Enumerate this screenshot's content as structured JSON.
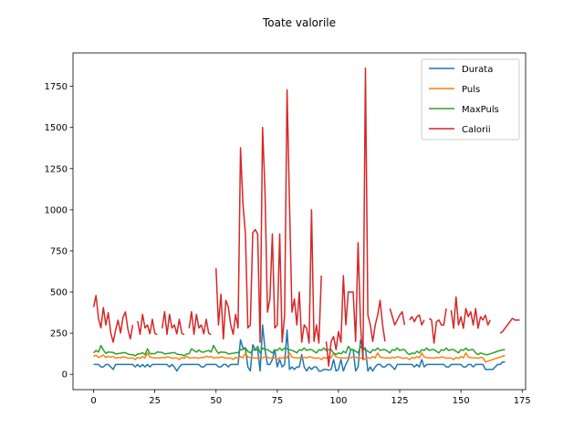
{
  "chart_data": {
    "type": "line",
    "title": "Toate valorile",
    "xlabel": "",
    "ylabel": "",
    "xlim": [
      -8.4,
      176.4
    ],
    "ylim": [
      -93,
      1953
    ],
    "xticks": [
      0,
      25,
      50,
      75,
      100,
      125,
      150,
      175
    ],
    "yticks": [
      0,
      250,
      500,
      750,
      1000,
      1250,
      1500,
      1750
    ],
    "grid": false,
    "legend": "top-right",
    "series": [
      {
        "name": "Durata",
        "color": "#1f77b4",
        "values": [
          60,
          60,
          60,
          45,
          45,
          60,
          60,
          45,
          30,
          60,
          60,
          60,
          60,
          60,
          60,
          60,
          60,
          45,
          60,
          45,
          60,
          45,
          60,
          45,
          60,
          60,
          60,
          60,
          60,
          60,
          60,
          45,
          60,
          45,
          20,
          45,
          60,
          60,
          60,
          60,
          60,
          60,
          60,
          60,
          45,
          45,
          60,
          60,
          60,
          60,
          60,
          45,
          45,
          60,
          60,
          45,
          60,
          60,
          60,
          60,
          210,
          160,
          160,
          45,
          20,
          180,
          150,
          150,
          20,
          300,
          150,
          60,
          60,
          90,
          150,
          45,
          90,
          45,
          60,
          270,
          30,
          45,
          30,
          45,
          45,
          120,
          45,
          20,
          45,
          30,
          45,
          45,
          20,
          20,
          30,
          30,
          25,
          30,
          90,
          20,
          30,
          90,
          20,
          60,
          90,
          150,
          150,
          20,
          45,
          210,
          160,
          160,
          20,
          45,
          20,
          45,
          60,
          60,
          45,
          45,
          60,
          60,
          45,
          30,
          60,
          60,
          60,
          60,
          60,
          60,
          60,
          45,
          60,
          45,
          90,
          45,
          60,
          60,
          60,
          60,
          60,
          60,
          60,
          60,
          45,
          45,
          60,
          60,
          60,
          60,
          60,
          45,
          45,
          60,
          60,
          45,
          60,
          60,
          60,
          60,
          30,
          30,
          30,
          30,
          45,
          60,
          60,
          75,
          75
        ]
      },
      {
        "name": "Puls",
        "color": "#ff7f0e",
        "values": [
          110,
          117,
          103,
          109,
          117,
          102,
          110,
          104,
          109,
          98,
          103,
          100,
          106,
          104,
          98,
          98,
          100,
          90,
          103,
          97,
          108,
          100,
          130,
          105,
          102,
          100,
          100,
          98,
          103,
          100,
          106,
          104,
          98,
          98,
          100,
          90,
          103,
          97,
          108,
          100,
          100,
          102,
          100,
          98,
          103,
          102,
          110,
          104,
          109,
          98,
          103,
          100,
          106,
          104,
          98,
          98,
          100,
          90,
          103,
          97,
          108,
          100,
          130,
          105,
          102,
          100,
          100,
          98,
          103,
          100,
          106,
          104,
          98,
          98,
          100,
          90,
          103,
          97,
          108,
          100,
          130,
          105,
          102,
          100,
          100,
          98,
          103,
          100,
          106,
          104,
          98,
          98,
          100,
          90,
          103,
          97,
          108,
          100,
          130,
          105,
          102,
          100,
          100,
          98,
          103,
          100,
          106,
          104,
          98,
          98,
          100,
          90,
          103,
          97,
          108,
          100,
          130,
          105,
          102,
          100,
          100,
          98,
          103,
          100,
          106,
          104,
          98,
          98,
          100,
          90,
          103,
          97,
          108,
          100,
          130,
          105,
          102,
          100,
          100,
          98,
          103,
          100,
          106,
          104,
          98,
          98,
          100,
          90,
          103,
          97,
          108,
          100,
          130,
          105,
          102,
          100,
          100,
          98,
          103,
          100,
          75,
          80,
          85,
          90,
          95,
          100,
          105,
          110,
          115
        ]
      },
      {
        "name": "MaxPuls",
        "color": "#2ca02c",
        "values": [
          130,
          145,
          135,
          175,
          148,
          127,
          136,
          134,
          133,
          124,
          126,
          128,
          131,
          132,
          123,
          120,
          120,
          112,
          123,
          125,
          131,
          119,
          155,
          125,
          126,
          125,
          136,
          134,
          133,
          124,
          126,
          128,
          131,
          132,
          123,
          120,
          120,
          112,
          123,
          125,
          155,
          145,
          135,
          148,
          136,
          135,
          141,
          145,
          135,
          175,
          148,
          127,
          136,
          134,
          133,
          124,
          126,
          128,
          131,
          132,
          150,
          150,
          160,
          140,
          130,
          150,
          145,
          170,
          130,
          160,
          150,
          150,
          140,
          130,
          150,
          145,
          160,
          145,
          160,
          155,
          150,
          145,
          140,
          130,
          150,
          145,
          160,
          145,
          150,
          150,
          140,
          130,
          150,
          145,
          160,
          145,
          150,
          150,
          130,
          120,
          130,
          125,
          140,
          130,
          170,
          150,
          150,
          140,
          130,
          170,
          150,
          150,
          140,
          130,
          150,
          145,
          160,
          145,
          150,
          150,
          140,
          130,
          150,
          145,
          160,
          145,
          150,
          150,
          130,
          120,
          130,
          125,
          140,
          130,
          150,
          145,
          160,
          145,
          150,
          150,
          140,
          130,
          150,
          145,
          160,
          145,
          150,
          150,
          140,
          130,
          150,
          145,
          160,
          145,
          150,
          150,
          130,
          120,
          130,
          125,
          120,
          120,
          125,
          130,
          135,
          140,
          145,
          148,
          150
        ]
      },
      {
        "name": "Calorii",
        "color": "#d62728",
        "values": [
          409.1,
          479,
          340,
          282.4,
          406,
          300,
          374,
          253.3,
          195.1,
          269,
          329.3,
          250.7,
          345.3,
          379.3,
          275,
          215.2,
          300,
          null,
          323,
          243,
          364.2,
          282,
          300,
          246,
          334.5,
          250,
          241,
          null,
          280,
          380.3,
          243,
          364.2,
          282,
          300,
          246,
          334.5,
          250,
          241,
          null,
          280,
          380.3,
          243,
          364.2,
          282,
          300,
          246,
          334.5,
          250,
          241,
          null,
          645.1,
          300,
          487,
          215,
          450,
          410,
          300,
          243,
          364.2,
          282,
          1376,
          1034,
          853,
          282,
          300,
          860,
          880,
          853,
          195,
          1500,
          1115,
          378,
          458,
          853,
          282,
          300,
          853,
          195,
          360,
          1729,
          1034,
          378,
          458,
          300,
          500,
          195,
          300,
          280,
          190,
          1000,
          200,
          300,
          190,
          600,
          null,
          200,
          50,
          200,
          230,
          150,
          260,
          195,
          600,
          300,
          500,
          500,
          500,
          200,
          800,
          300,
          90,
          1860,
          360,
          300,
          200,
          300,
          360,
          450,
          300,
          200,
          null,
          400,
          350,
          300,
          330,
          360,
          380,
          300,
          null,
          330,
          350,
          320,
          350,
          360,
          300,
          330,
          null,
          340,
          330,
          190,
          320,
          330,
          300,
          300,
          400,
          null,
          390,
          280,
          470,
          300,
          350,
          280,
          400,
          350,
          380,
          300,
          400,
          280,
          350,
          330,
          360,
          300,
          330,
          null,
          null,
          null,
          250,
          260,
          280,
          300,
          320,
          340,
          330,
          330,
          330
        ]
      }
    ]
  }
}
